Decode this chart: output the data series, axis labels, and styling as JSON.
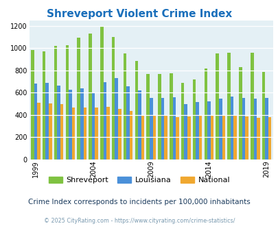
{
  "title": "Shreveport Violent Crime Index",
  "title_color": "#1a6fbb",
  "years": [
    1999,
    2000,
    2001,
    2002,
    2003,
    2004,
    2005,
    2006,
    2007,
    2008,
    2009,
    2010,
    2011,
    2012,
    2013,
    2014,
    2015,
    2016,
    2017,
    2018,
    2019
  ],
  "shreveport": [
    985,
    970,
    1020,
    1025,
    1095,
    1130,
    1195,
    1100,
    950,
    885,
    770,
    770,
    775,
    690,
    720,
    820,
    950,
    960,
    830,
    960,
    785
  ],
  "louisiana": [
    680,
    685,
    665,
    625,
    640,
    595,
    695,
    730,
    655,
    620,
    550,
    555,
    560,
    495,
    515,
    520,
    545,
    565,
    555,
    545,
    550
  ],
  "national": [
    510,
    500,
    495,
    465,
    465,
    465,
    470,
    455,
    435,
    400,
    395,
    390,
    380,
    385,
    390,
    395,
    400,
    395,
    385,
    375,
    380
  ],
  "shreveport_color": "#7fc241",
  "louisiana_color": "#4a90d9",
  "national_color": "#f0a830",
  "bg_color": "#e4f0f5",
  "ylim": [
    0,
    1250
  ],
  "yticks": [
    0,
    200,
    400,
    600,
    800,
    1000,
    1200
  ],
  "xtick_years": [
    1999,
    2004,
    2009,
    2014,
    2019
  ],
  "subtitle": "Crime Index corresponds to incidents per 100,000 inhabitants",
  "footer": "© 2025 CityRating.com - https://www.cityrating.com/crime-statistics/",
  "subtitle_color": "#1a3a5c",
  "footer_color": "#7a9ab0"
}
